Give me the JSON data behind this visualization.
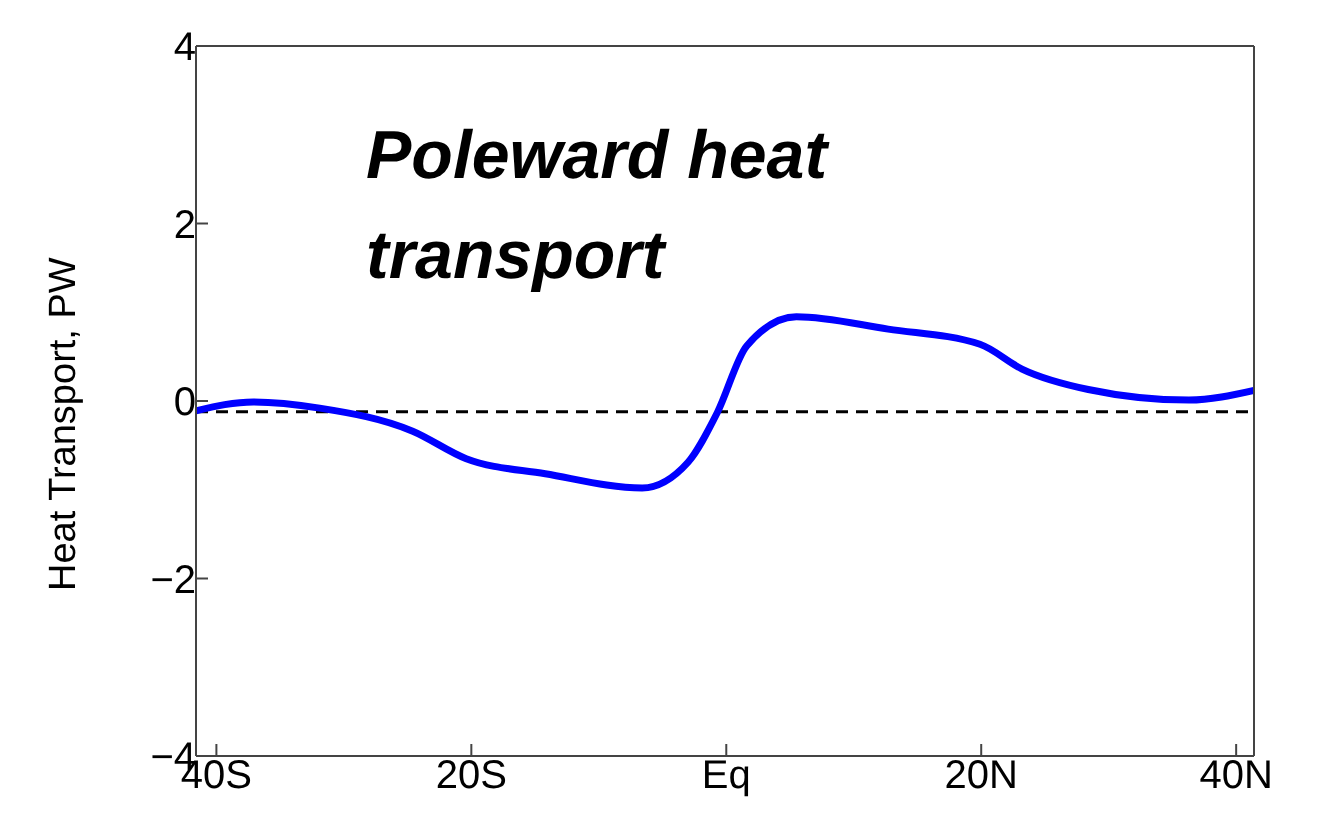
{
  "chart_data": {
    "type": "line",
    "ylabel": "Heat Transport, PW",
    "annotations": [
      "Poleward heat transport"
    ],
    "x": [
      -41.6,
      -37.1,
      -31.9,
      -24.6,
      -20.4,
      -14.2,
      -6.6,
      -3.0,
      -0.7,
      1.6,
      5.5,
      12.7,
      19.9,
      23.2,
      28.4,
      36.3,
      41.4
    ],
    "series": [
      {
        "color": "#0000ff",
        "values": [
          -0.11,
          -0.01,
          -0.08,
          -0.34,
          -0.65,
          -0.82,
          -0.98,
          -0.69,
          -0.13,
          0.62,
          0.95,
          0.81,
          0.64,
          0.36,
          0.13,
          0.01,
          0.12
        ]
      }
    ],
    "xlim": [
      -41.6,
      41.4
    ],
    "xticks": [
      {
        "value": -40,
        "label": "40S"
      },
      {
        "value": -20,
        "label": "20S"
      },
      {
        "value": 0,
        "label": "Eq"
      },
      {
        "value": 20,
        "label": "20N"
      },
      {
        "value": 40,
        "label": "40N"
      }
    ],
    "ylim": [
      -4,
      4
    ],
    "yticks": [
      {
        "value": -4,
        "label": "−4"
      },
      {
        "value": -2,
        "label": "−2"
      },
      0,
      2,
      4
    ],
    "ref_lines": [
      {
        "axis": "y",
        "value": -0.12,
        "color": "#000000",
        "line_style": "dashed"
      }
    ],
    "grid": false,
    "legend": false,
    "marker": "none",
    "line_style": "solid"
  }
}
